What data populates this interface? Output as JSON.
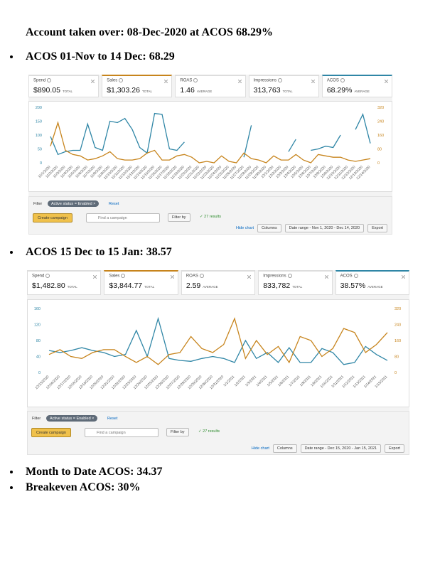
{
  "heading": "Account taken over: 08-Dec-2020 at ACOS 68.29%",
  "panels": [
    {
      "bullet": "ACOS 01-Nov to 14 Dec: 68.29",
      "cards": [
        {
          "label": "Spend",
          "value": "$890.05",
          "unit": "TOTAL"
        },
        {
          "label": "Sales",
          "value": "$1,303.26",
          "unit": "TOTAL",
          "highlight": "#c7841c"
        },
        {
          "label": "ROAS",
          "value": "1.46",
          "unit": "AVERAGE"
        },
        {
          "label": "Impressions",
          "value": "313,763",
          "unit": "TOTAL"
        },
        {
          "label": "ACOS",
          "value": "68.29%",
          "unit": "AVERAGE",
          "highlight": "#2f86a6"
        }
      ],
      "chart": {
        "type": "line",
        "x": [
          "11/1/2020",
          "11/2/2020",
          "11/3/2020",
          "11/4/2020",
          "11/5/2020",
          "11/6/2020",
          "11/7/2020",
          "11/8/2020",
          "11/9/2020",
          "11/10/2020",
          "11/11/2020",
          "11/12/2020",
          "11/13/2020",
          "11/14/2020",
          "11/15/2020",
          "11/16/2020",
          "11/17/2020",
          "11/18/2020",
          "11/19/2020",
          "11/20/2020",
          "11/21/2020",
          "11/22/2020",
          "11/23/2020",
          "11/24/2020",
          "11/25/2020",
          "11/26/2020",
          "11/27/2020",
          "11/28/2020",
          "11/29/2020",
          "11/30/2020",
          "12/1/2020",
          "12/2/2020",
          "12/3/2020",
          "12/4/2020",
          "12/5/2020",
          "12/6/2020",
          "12/7/2020",
          "12/8/2020",
          "12/9/2020",
          "12/10/2020",
          "12/11/2020",
          "12/12/2020",
          "12/13/2020",
          "12/14/2020"
        ],
        "ylim": [
          0,
          200
        ],
        "yticks": [
          0,
          50,
          100,
          150,
          200
        ],
        "y2lim": [
          0,
          320
        ],
        "y2ticks": [
          0,
          80,
          160,
          240,
          320
        ],
        "ycolor": "#2f86a6",
        "y2color": "#c7841c",
        "series": [
          {
            "color": "#2f86a6",
            "values": [
              95,
              30,
              40,
              45,
              45,
              140,
              55,
              45,
              150,
              145,
              160,
              120,
              55,
              35,
              178,
              175,
              50,
              45,
              75,
              null,
              null,
              null,
              null,
              null,
              null,
              null,
              20,
              135,
              null,
              null,
              null,
              null,
              40,
              85,
              null,
              45,
              50,
              60,
              55,
              100,
              null,
              120,
              175,
              70
            ]
          },
          {
            "color": "#c7841c",
            "axis": "y2",
            "values": [
              96,
              232,
              72,
              48,
              40,
              16,
              24,
              40,
              64,
              24,
              16,
              16,
              24,
              56,
              72,
              16,
              16,
              40,
              48,
              32,
              0,
              8,
              0,
              40,
              8,
              0,
              56,
              24,
              16,
              0,
              40,
              16,
              16,
              48,
              16,
              0,
              48,
              40,
              32,
              32,
              16,
              8,
              16,
              24
            ]
          }
        ]
      },
      "filter": {
        "label": "Filter",
        "pill": "Active status = Enabled ×",
        "reset": "Reset",
        "create": "Create campaign",
        "search": "Find a campaign",
        "filter_by": "Filter by",
        "results": "✓ 27 results",
        "hide": "Hide chart",
        "columns": "Columns",
        "date_range": "Date range - Nov 1, 2020 - Dec 14, 2020",
        "export": "Export"
      }
    },
    {
      "bullet": "ACOS 15 Dec to 15 Jan: 38.57",
      "cards": [
        {
          "label": "Spend",
          "value": "$1,482.80",
          "unit": "TOTAL"
        },
        {
          "label": "Sales",
          "value": "$3,844.77",
          "unit": "TOTAL",
          "highlight": "#c7841c"
        },
        {
          "label": "ROAS",
          "value": "2.59",
          "unit": "AVERAGE"
        },
        {
          "label": "Impressions",
          "value": "833,782",
          "unit": "TOTAL"
        },
        {
          "label": "ACOS",
          "value": "38.57%",
          "unit": "AVERAGE",
          "highlight": "#2f86a6"
        }
      ],
      "chart": {
        "type": "line",
        "x": [
          "12/15/2020",
          "12/16/2020",
          "12/17/2020",
          "12/18/2020",
          "12/19/2020",
          "12/20/2020",
          "12/21/2020",
          "12/22/2020",
          "12/23/2020",
          "12/24/2020",
          "12/25/2020",
          "12/26/2020",
          "12/27/2020",
          "12/28/2020",
          "12/29/2020",
          "12/30/2020",
          "12/31/2020",
          "1/1/2021",
          "1/2/2021",
          "1/3/2021",
          "1/4/2021",
          "1/5/2021",
          "1/6/2021",
          "1/7/2021",
          "1/8/2021",
          "1/9/2021",
          "1/10/2021",
          "1/11/2021",
          "1/12/2021",
          "1/13/2021",
          "1/14/2021",
          "1/15/2021"
        ],
        "ylim": [
          0,
          160
        ],
        "yticks": [
          0,
          40,
          80,
          120,
          160
        ],
        "y2lim": [
          0,
          320
        ],
        "y2ticks": [
          0,
          80,
          160,
          240,
          320
        ],
        "ycolor": "#2f86a6",
        "y2color": "#c7841c",
        "series": [
          {
            "color": "#2f86a6",
            "values": [
              55,
              50,
              55,
              62,
              55,
              50,
              40,
              45,
              105,
              40,
              135,
              35,
              30,
              28,
              35,
              40,
              35,
              25,
              80,
              35,
              50,
              25,
              62,
              25,
              25,
              60,
              50,
              20,
              25,
              65,
              45,
              30
            ]
          },
          {
            "color": "#c7841c",
            "axis": "y2",
            "values": [
              90,
              114,
              80,
              70,
              100,
              114,
              114,
              80,
              50,
              80,
              40,
              90,
              100,
              180,
              120,
              100,
              140,
              270,
              70,
              160,
              90,
              130,
              50,
              180,
              160,
              80,
              120,
              220,
              200,
              100,
              140,
              200
            ]
          }
        ]
      },
      "filter": {
        "label": "Filter",
        "pill": "Active status = Enabled ×",
        "reset": "Reset",
        "create": "Create campaign",
        "search": "Find a campaign",
        "filter_by": "Filter by",
        "results": "✓ 27 results",
        "hide": "Hide chart",
        "columns": "Columns",
        "date_range": "Date range - Dec 15, 2020 - Jan 15, 2021",
        "export": "Export"
      }
    }
  ],
  "footer_bullets": [
    "Month to Date ACOS: 34.37",
    "Breakeven ACOS: 30%"
  ]
}
